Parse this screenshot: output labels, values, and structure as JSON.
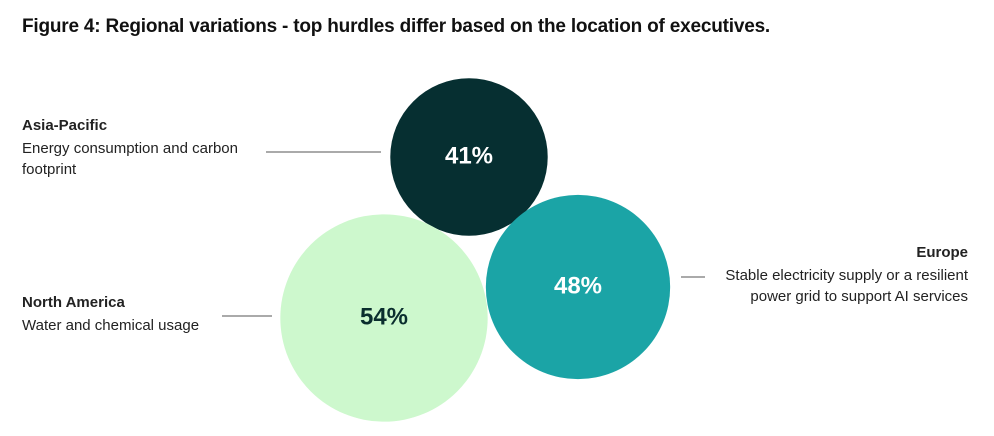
{
  "chart_data": {
    "type": "bubble",
    "title": "Figure 4: Regional variations - top hurdles differ based on the location of executives.",
    "categories": [
      "Asia-Pacific",
      "Europe",
      "North America"
    ],
    "descriptions": [
      "Energy consumption and carbon footprint",
      "Stable electricity supply or a resilient power grid to support AI services",
      "Water and chemical usage"
    ],
    "values": [
      41,
      48,
      54
    ],
    "value_labels": [
      "41%",
      "48%",
      "54%"
    ],
    "colors": [
      "#062f31",
      "#1ba4a6",
      "#cdf8cd"
    ]
  }
}
